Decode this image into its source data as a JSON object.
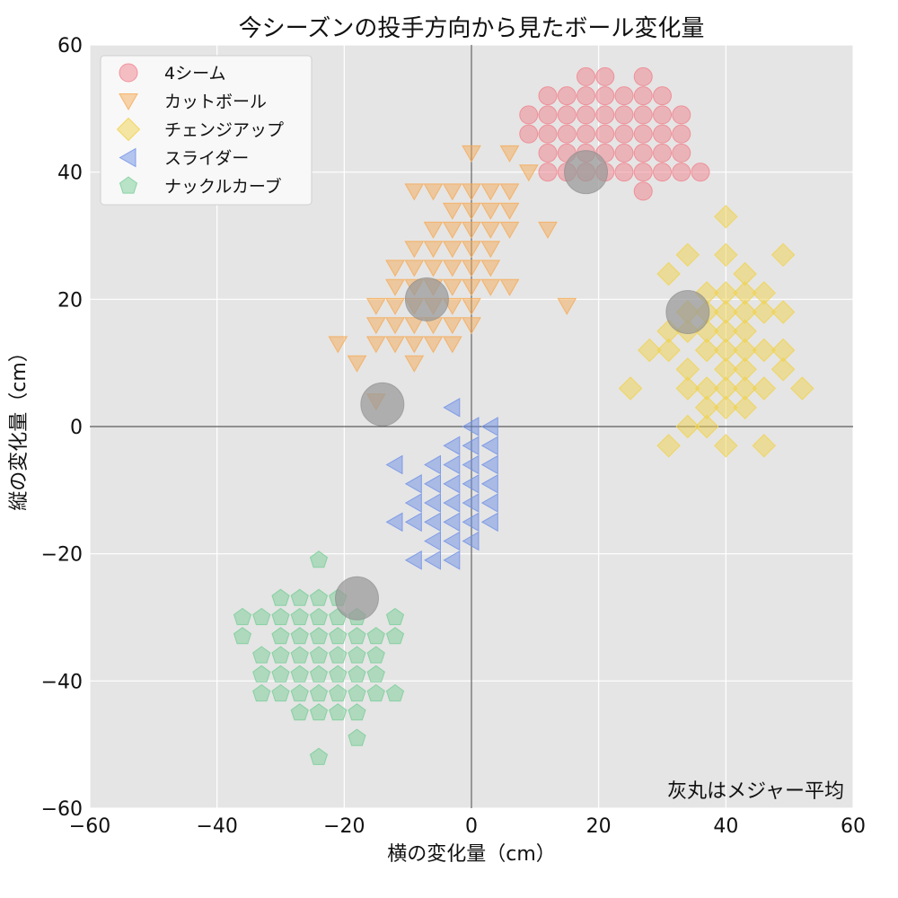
{
  "chart_data": {
    "type": "scatter",
    "title": "今シーズンの投手方向から見たボール変化量",
    "xlabel": "横の変化量（cm）",
    "ylabel": "縦の変化量（cm）",
    "xlim": [
      -60,
      60
    ],
    "ylim": [
      -60,
      60
    ],
    "xticks": [
      -60,
      -40,
      -20,
      0,
      20,
      40,
      60
    ],
    "yticks": [
      -60,
      -40,
      -20,
      0,
      20,
      40,
      60
    ],
    "tick_labels": {
      "x": [
        "−60",
        "−40",
        "−20",
        "0",
        "20",
        "40",
        "60"
      ],
      "y": [
        "−60",
        "−40",
        "−20",
        "0",
        "20",
        "40",
        "60"
      ]
    },
    "grid": true,
    "legend_position": "top-left",
    "annotation": "灰丸はメジャー平均",
    "series": [
      {
        "name": "4シーム",
        "marker": "circle",
        "color": "#f0828c",
        "points": [
          [
            18,
            55
          ],
          [
            21,
            55
          ],
          [
            27,
            55
          ],
          [
            12,
            52
          ],
          [
            15,
            52
          ],
          [
            18,
            52
          ],
          [
            21,
            52
          ],
          [
            24,
            52
          ],
          [
            27,
            52
          ],
          [
            30,
            52
          ],
          [
            9,
            49
          ],
          [
            12,
            49
          ],
          [
            15,
            49
          ],
          [
            18,
            49
          ],
          [
            21,
            49
          ],
          [
            24,
            49
          ],
          [
            27,
            49
          ],
          [
            30,
            49
          ],
          [
            33,
            49
          ],
          [
            9,
            46
          ],
          [
            12,
            46
          ],
          [
            15,
            46
          ],
          [
            18,
            46
          ],
          [
            21,
            46
          ],
          [
            24,
            46
          ],
          [
            27,
            46
          ],
          [
            30,
            46
          ],
          [
            33,
            46
          ],
          [
            12,
            43
          ],
          [
            15,
            43
          ],
          [
            18,
            43
          ],
          [
            21,
            43
          ],
          [
            24,
            43
          ],
          [
            27,
            43
          ],
          [
            30,
            43
          ],
          [
            33,
            43
          ],
          [
            12,
            40
          ],
          [
            15,
            40
          ],
          [
            18,
            40
          ],
          [
            21,
            40
          ],
          [
            24,
            40
          ],
          [
            27,
            40
          ],
          [
            30,
            40
          ],
          [
            33,
            40
          ],
          [
            36,
            40
          ],
          [
            27,
            37
          ]
        ]
      },
      {
        "name": "カットボール",
        "marker": "triangle-down",
        "color": "#f5aa55",
        "points": [
          [
            0,
            43
          ],
          [
            6,
            43
          ],
          [
            9,
            40
          ],
          [
            -9,
            37
          ],
          [
            -6,
            37
          ],
          [
            -3,
            37
          ],
          [
            0,
            37
          ],
          [
            3,
            37
          ],
          [
            6,
            37
          ],
          [
            -3,
            34
          ],
          [
            0,
            34
          ],
          [
            3,
            34
          ],
          [
            6,
            34
          ],
          [
            -6,
            31
          ],
          [
            -3,
            31
          ],
          [
            0,
            31
          ],
          [
            3,
            31
          ],
          [
            6,
            31
          ],
          [
            12,
            31
          ],
          [
            -9,
            28
          ],
          [
            -6,
            28
          ],
          [
            -3,
            28
          ],
          [
            0,
            28
          ],
          [
            3,
            28
          ],
          [
            -12,
            25
          ],
          [
            -9,
            25
          ],
          [
            -6,
            25
          ],
          [
            -3,
            25
          ],
          [
            0,
            25
          ],
          [
            3,
            25
          ],
          [
            -12,
            22
          ],
          [
            -9,
            22
          ],
          [
            -6,
            22
          ],
          [
            -3,
            22
          ],
          [
            0,
            22
          ],
          [
            3,
            22
          ],
          [
            6,
            22
          ],
          [
            -15,
            19
          ],
          [
            -12,
            19
          ],
          [
            -9,
            19
          ],
          [
            -6,
            19
          ],
          [
            -3,
            19
          ],
          [
            0,
            19
          ],
          [
            15,
            19
          ],
          [
            -15,
            16
          ],
          [
            -12,
            16
          ],
          [
            -9,
            16
          ],
          [
            -6,
            16
          ],
          [
            -3,
            16
          ],
          [
            0,
            16
          ],
          [
            -21,
            13
          ],
          [
            -15,
            13
          ],
          [
            -12,
            13
          ],
          [
            -9,
            13
          ],
          [
            -6,
            13
          ],
          [
            -3,
            13
          ],
          [
            -18,
            10
          ],
          [
            -9,
            10
          ],
          [
            -15,
            4
          ]
        ]
      },
      {
        "name": "チェンジアップ",
        "marker": "diamond",
        "color": "#f0d24b",
        "points": [
          [
            40,
            33
          ],
          [
            34,
            27
          ],
          [
            40,
            27
          ],
          [
            49,
            27
          ],
          [
            31,
            24
          ],
          [
            43,
            24
          ],
          [
            37,
            21
          ],
          [
            40,
            21
          ],
          [
            43,
            21
          ],
          [
            46,
            21
          ],
          [
            34,
            18
          ],
          [
            37,
            18
          ],
          [
            40,
            18
          ],
          [
            43,
            18
          ],
          [
            46,
            18
          ],
          [
            49,
            18
          ],
          [
            31,
            15
          ],
          [
            34,
            15
          ],
          [
            37,
            15
          ],
          [
            40,
            15
          ],
          [
            43,
            15
          ],
          [
            28,
            12
          ],
          [
            31,
            12
          ],
          [
            37,
            12
          ],
          [
            40,
            12
          ],
          [
            43,
            12
          ],
          [
            46,
            12
          ],
          [
            49,
            12
          ],
          [
            34,
            9
          ],
          [
            40,
            9
          ],
          [
            43,
            9
          ],
          [
            49,
            9
          ],
          [
            25,
            6
          ],
          [
            34,
            6
          ],
          [
            37,
            6
          ],
          [
            40,
            6
          ],
          [
            43,
            6
          ],
          [
            46,
            6
          ],
          [
            52,
            6
          ],
          [
            37,
            3
          ],
          [
            40,
            3
          ],
          [
            43,
            3
          ],
          [
            34,
            0
          ],
          [
            37,
            0
          ],
          [
            31,
            -3
          ],
          [
            40,
            -3
          ],
          [
            46,
            -3
          ]
        ]
      },
      {
        "name": "スライダー",
        "marker": "triangle-left",
        "color": "#6e8fe6",
        "points": [
          [
            -3,
            3
          ],
          [
            0,
            0
          ],
          [
            3,
            0
          ],
          [
            -3,
            -3
          ],
          [
            0,
            -3
          ],
          [
            3,
            -3
          ],
          [
            -12,
            -6
          ],
          [
            -6,
            -6
          ],
          [
            -3,
            -6
          ],
          [
            0,
            -6
          ],
          [
            3,
            -6
          ],
          [
            -9,
            -9
          ],
          [
            -6,
            -9
          ],
          [
            -3,
            -9
          ],
          [
            0,
            -9
          ],
          [
            3,
            -9
          ],
          [
            -9,
            -12
          ],
          [
            -6,
            -12
          ],
          [
            -3,
            -12
          ],
          [
            0,
            -12
          ],
          [
            3,
            -12
          ],
          [
            -12,
            -15
          ],
          [
            -9,
            -15
          ],
          [
            -6,
            -15
          ],
          [
            -3,
            -15
          ],
          [
            0,
            -15
          ],
          [
            3,
            -15
          ],
          [
            -6,
            -18
          ],
          [
            -3,
            -18
          ],
          [
            0,
            -18
          ],
          [
            -9,
            -21
          ],
          [
            -6,
            -21
          ],
          [
            -3,
            -21
          ]
        ]
      },
      {
        "name": "ナックルカーブ",
        "marker": "pentagon",
        "color": "#78cd96",
        "points": [
          [
            -24,
            -21
          ],
          [
            -30,
            -27
          ],
          [
            -27,
            -27
          ],
          [
            -24,
            -27
          ],
          [
            -21,
            -27
          ],
          [
            -36,
            -30
          ],
          [
            -33,
            -30
          ],
          [
            -30,
            -30
          ],
          [
            -27,
            -30
          ],
          [
            -24,
            -30
          ],
          [
            -21,
            -30
          ],
          [
            -18,
            -30
          ],
          [
            -12,
            -30
          ],
          [
            -36,
            -33
          ],
          [
            -30,
            -33
          ],
          [
            -27,
            -33
          ],
          [
            -24,
            -33
          ],
          [
            -21,
            -33
          ],
          [
            -18,
            -33
          ],
          [
            -15,
            -33
          ],
          [
            -12,
            -33
          ],
          [
            -33,
            -36
          ],
          [
            -30,
            -36
          ],
          [
            -27,
            -36
          ],
          [
            -24,
            -36
          ],
          [
            -21,
            -36
          ],
          [
            -18,
            -36
          ],
          [
            -15,
            -36
          ],
          [
            -33,
            -39
          ],
          [
            -30,
            -39
          ],
          [
            -27,
            -39
          ],
          [
            -24,
            -39
          ],
          [
            -21,
            -39
          ],
          [
            -18,
            -39
          ],
          [
            -15,
            -39
          ],
          [
            -33,
            -42
          ],
          [
            -30,
            -42
          ],
          [
            -27,
            -42
          ],
          [
            -24,
            -42
          ],
          [
            -21,
            -42
          ],
          [
            -18,
            -42
          ],
          [
            -15,
            -42
          ],
          [
            -12,
            -42
          ],
          [
            -27,
            -45
          ],
          [
            -24,
            -45
          ],
          [
            -21,
            -45
          ],
          [
            -18,
            -45
          ],
          [
            -18,
            -49
          ],
          [
            -24,
            -52
          ]
        ]
      }
    ],
    "major_averages": {
      "color": "#999999",
      "points": [
        [
          18,
          40
        ],
        [
          -7,
          20
        ],
        [
          34,
          18
        ],
        [
          -14,
          3.5
        ],
        [
          -18,
          -27
        ]
      ]
    }
  }
}
